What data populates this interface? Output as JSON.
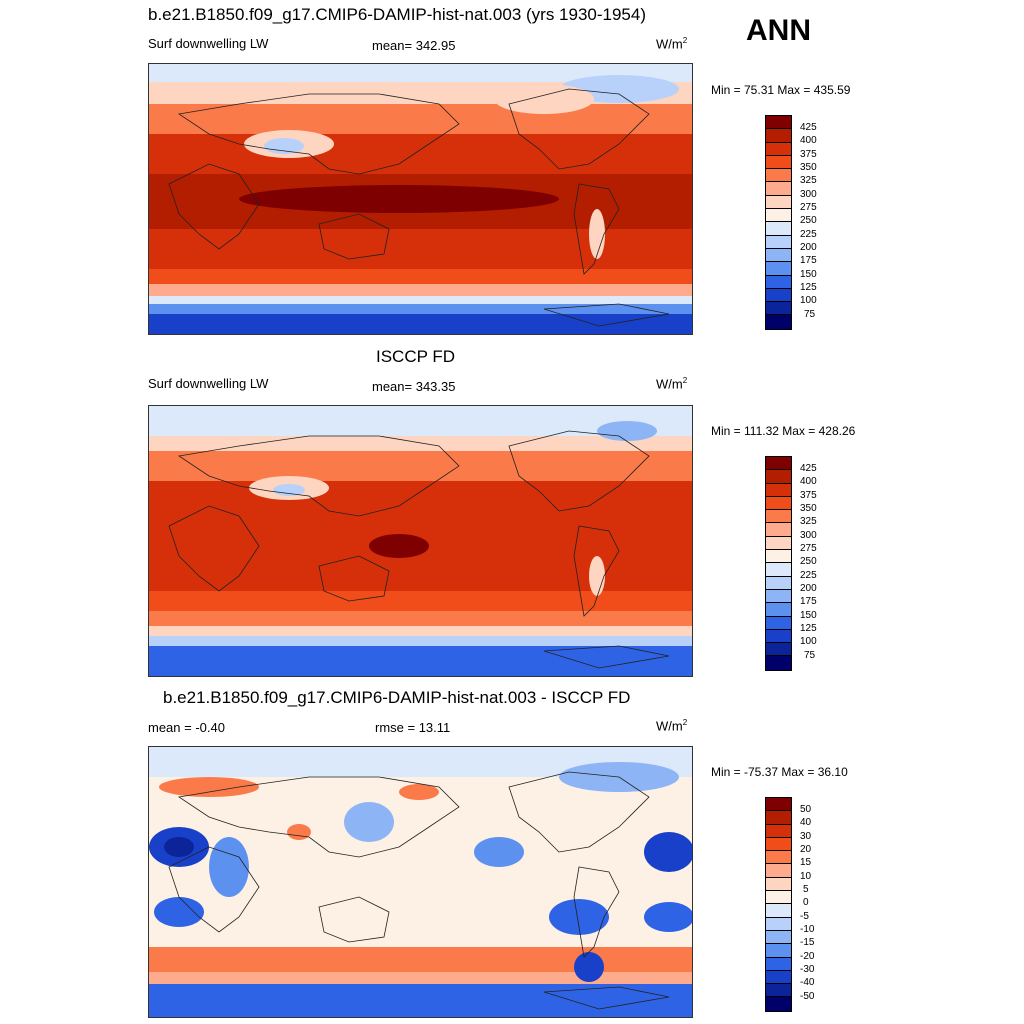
{
  "season": "ANN",
  "panel1": {
    "title": "b.e21.B1850.f09_g17.CMIP6-DAMIP-hist-nat.003 (yrs 1930-1954)",
    "left": "Surf downwelling LW",
    "center": "mean= 342.95",
    "units": "W/m",
    "units_sup": "2",
    "minmax": "Min =  75.31 Max = 435.59",
    "ticks": [
      "425",
      "400",
      "375",
      "350",
      "325",
      "300",
      "275",
      "250",
      "225",
      "200",
      "175",
      "150",
      "125",
      "100",
      "75"
    ]
  },
  "panel2": {
    "title": "ISCCP FD",
    "left": "Surf downwelling LW",
    "center": "mean= 343.35",
    "units": "W/m",
    "units_sup": "2",
    "minmax": "Min = 111.32 Max = 428.26",
    "ticks": [
      "425",
      "400",
      "375",
      "350",
      "325",
      "300",
      "275",
      "250",
      "225",
      "200",
      "175",
      "150",
      "125",
      "100",
      "75"
    ]
  },
  "panel3": {
    "title": "b.e21.B1850.f09_g17.CMIP6-DAMIP-hist-nat.003 - ISCCP FD",
    "left": "mean =  -0.40",
    "center": "rmse =  13.11",
    "units": "W/m",
    "units_sup": "2",
    "minmax": "Min = -75.37 Max =  36.10",
    "ticks": [
      "50",
      "40",
      "30",
      "20",
      "15",
      "10",
      "5",
      "0",
      "-5",
      "-10",
      "-15",
      "-20",
      "-30",
      "-40",
      "-50"
    ]
  },
  "colors": {
    "scale": [
      "#7f0000",
      "#b31e00",
      "#d6300a",
      "#f04d1a",
      "#fa7a4a",
      "#fdab8c",
      "#fdd5c1",
      "#fdf0e4",
      "#dce9fb",
      "#b7d1fa",
      "#8db5f5",
      "#5d91ef",
      "#2f63e6",
      "#1840c8",
      "#0c2499",
      "#00006b"
    ]
  }
}
